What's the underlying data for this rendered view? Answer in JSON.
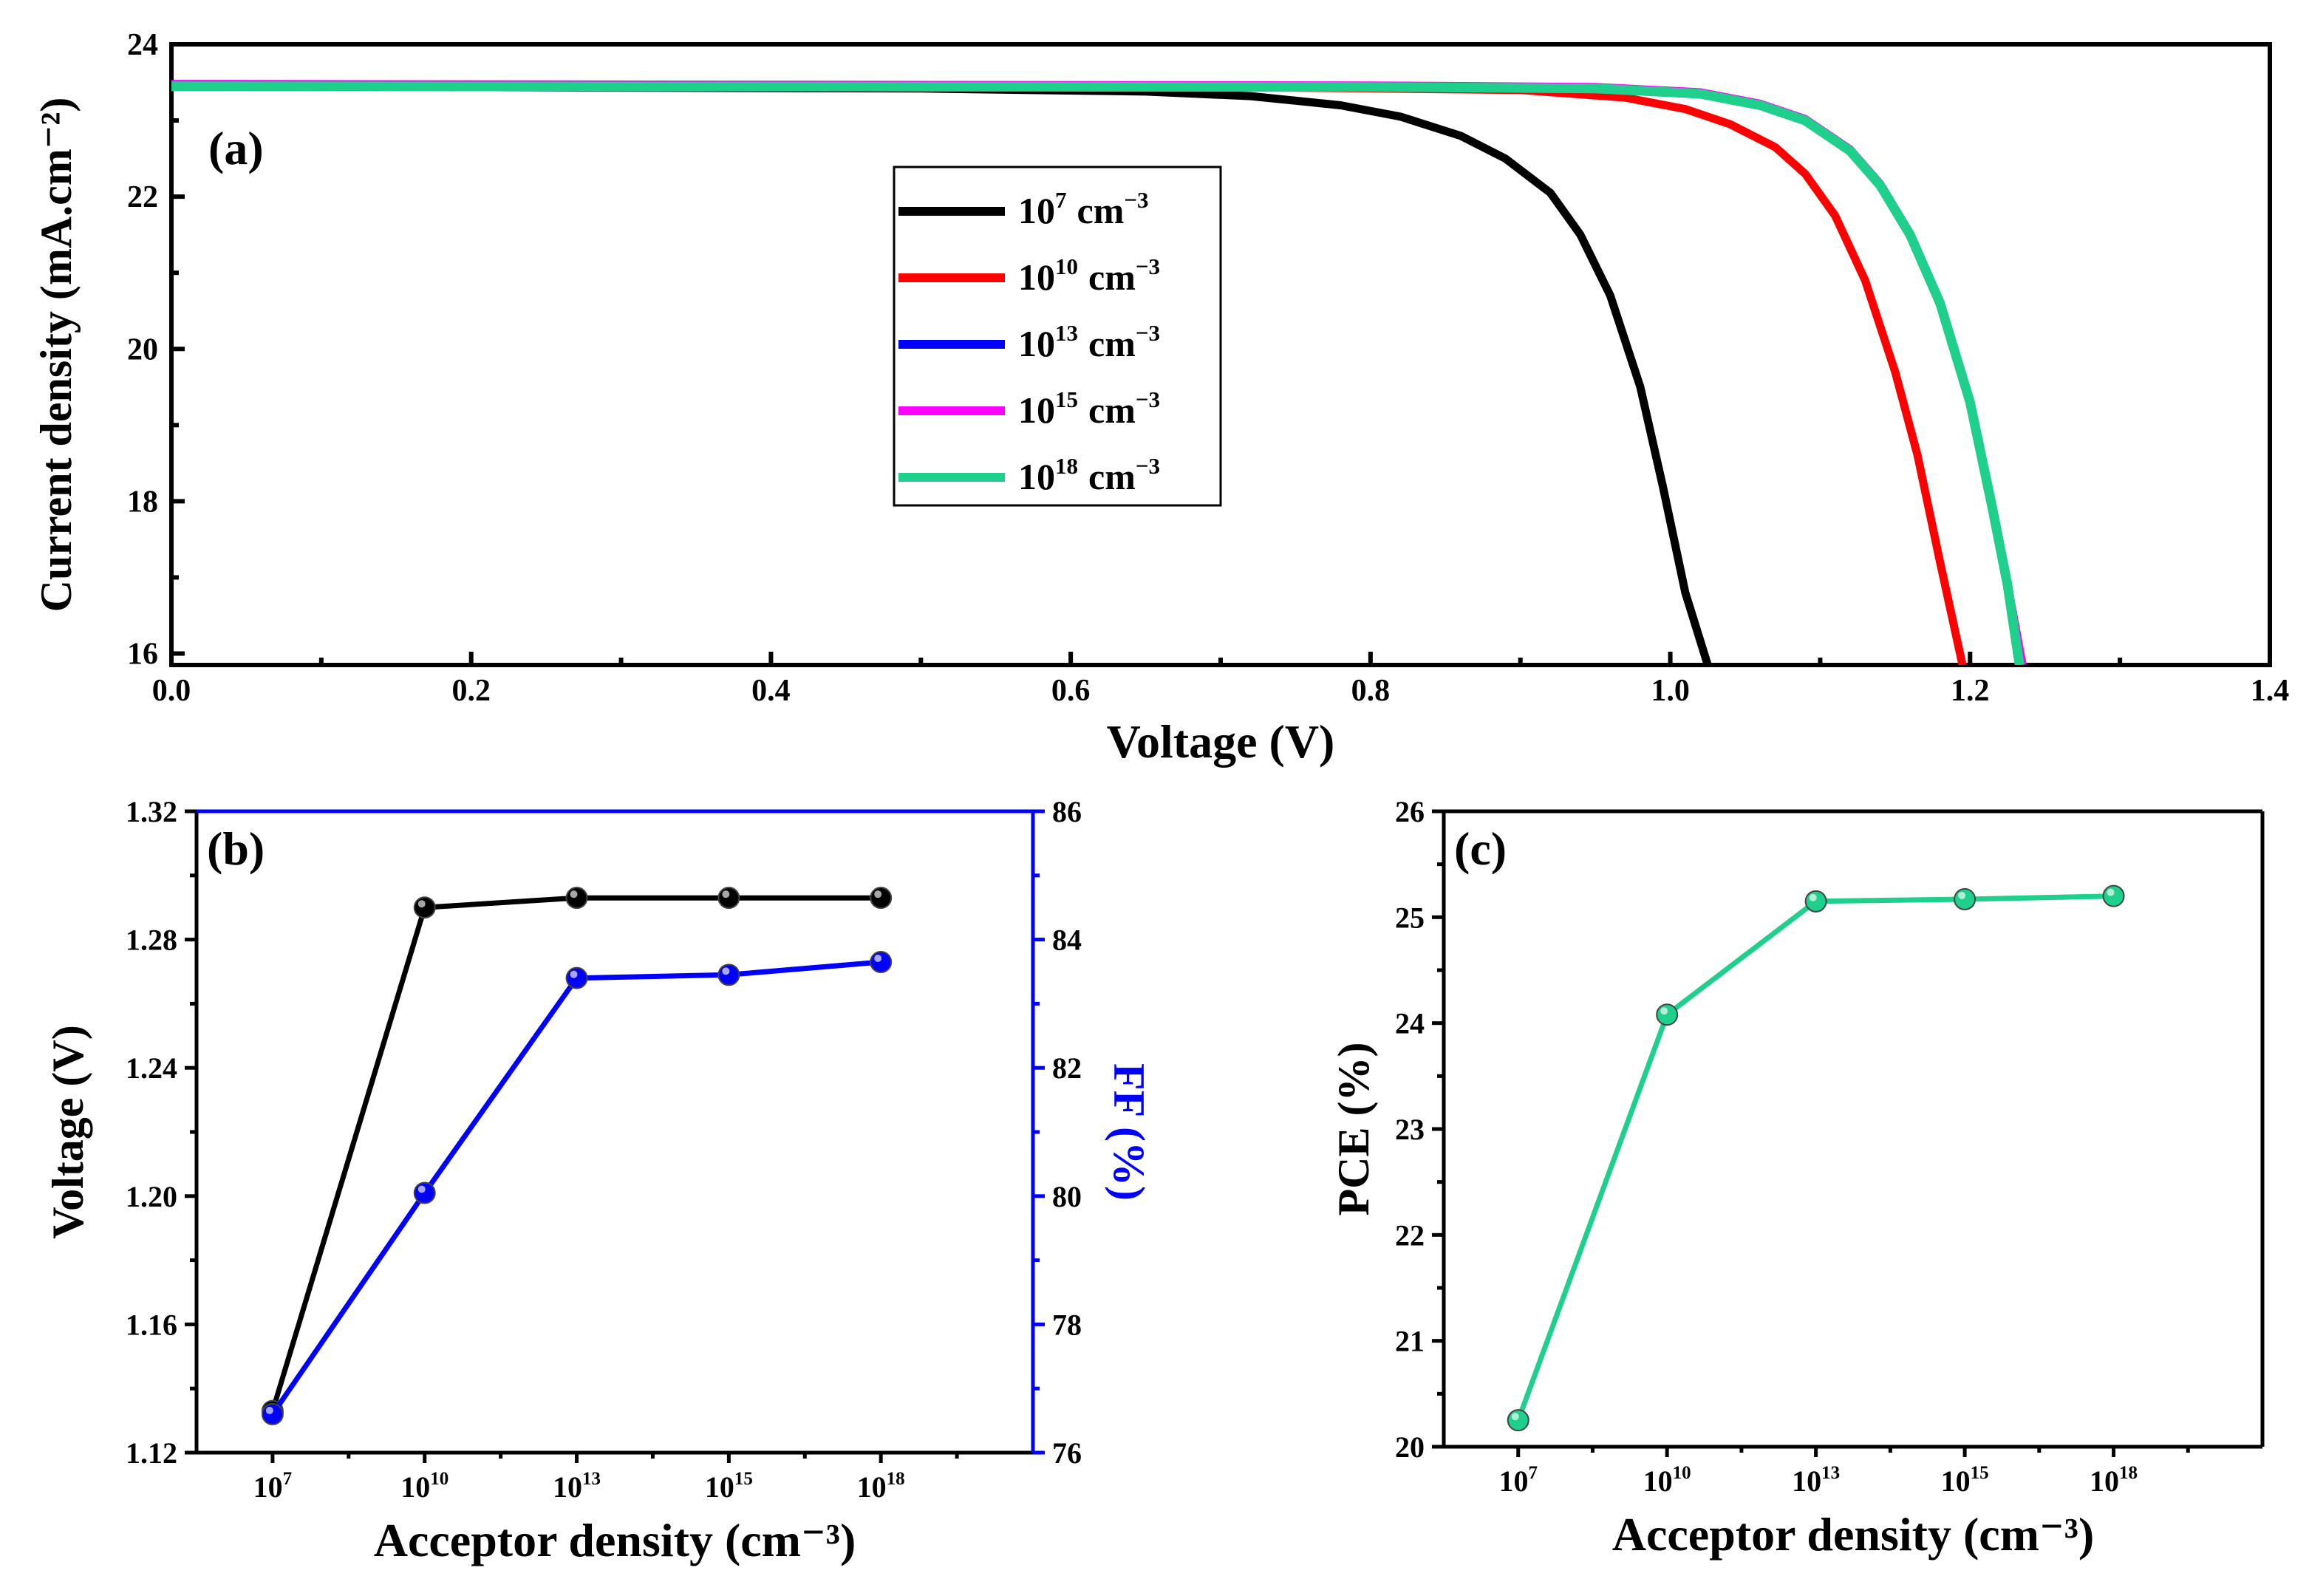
{
  "chart_data": [
    {
      "id": "a",
      "type": "line",
      "panel_label": "(a)",
      "xlabel": "Voltage (V)",
      "ylabel": "Current density (mA.cm⁻²)",
      "xlim": [
        0.0,
        1.4
      ],
      "ylim": [
        15.85,
        24.0
      ],
      "xticks": [
        0.0,
        0.2,
        0.4,
        0.6,
        0.8,
        1.0,
        1.2,
        1.4
      ],
      "xtick_labels": [
        "0.0",
        "0.2",
        "0.4",
        "0.6",
        "0.8",
        "1.0",
        "1.2",
        "1.4"
      ],
      "yticks": [
        16,
        18,
        20,
        22,
        24
      ],
      "ytick_labels": [
        "16",
        "18",
        "20",
        "22",
        "24"
      ],
      "legend_position": "center",
      "series": [
        {
          "name": "10^7 cm^-3",
          "base": "10",
          "exp": "7",
          "unit": "cm",
          "unit_exp": "−3",
          "color": "#000000",
          "x": [
            0.0,
            0.5,
            0.65,
            0.72,
            0.78,
            0.82,
            0.86,
            0.89,
            0.92,
            0.94,
            0.96,
            0.98,
            0.995,
            1.01,
            1.025
          ],
          "y": [
            23.45,
            23.42,
            23.38,
            23.32,
            23.2,
            23.05,
            22.8,
            22.5,
            22.05,
            21.5,
            20.7,
            19.5,
            18.2,
            16.8,
            15.85
          ]
        },
        {
          "name": "10^10 cm^-3",
          "base": "10",
          "exp": "10",
          "unit": "cm",
          "unit_exp": "−3",
          "color": "#ff0000",
          "x": [
            0.0,
            0.7,
            0.9,
            0.97,
            1.01,
            1.04,
            1.07,
            1.09,
            1.11,
            1.13,
            1.15,
            1.165,
            1.18,
            1.195
          ],
          "y": [
            23.45,
            23.44,
            23.4,
            23.3,
            23.15,
            22.95,
            22.65,
            22.3,
            21.75,
            20.9,
            19.7,
            18.6,
            17.2,
            15.85
          ]
        },
        {
          "name": "10^13 cm^-3",
          "base": "10",
          "exp": "13",
          "unit": "cm",
          "unit_exp": "−3",
          "color": "#0000ff",
          "x": [
            0.0,
            0.8,
            0.95,
            1.02,
            1.06,
            1.09,
            1.12,
            1.14,
            1.16,
            1.18,
            1.2,
            1.215,
            1.225,
            1.235
          ],
          "y": [
            23.45,
            23.44,
            23.42,
            23.35,
            23.2,
            23.0,
            22.6,
            22.15,
            21.5,
            20.6,
            19.3,
            17.9,
            16.9,
            15.85
          ]
        },
        {
          "name": "10^15 cm^-3",
          "base": "10",
          "exp": "15",
          "unit": "cm",
          "unit_exp": "−3",
          "color": "#ff00ff",
          "x": [
            0.0,
            0.8,
            0.95,
            1.02,
            1.06,
            1.09,
            1.12,
            1.14,
            1.16,
            1.18,
            1.2,
            1.215,
            1.225,
            1.235
          ],
          "y": [
            23.48,
            23.46,
            23.44,
            23.37,
            23.22,
            23.02,
            22.62,
            22.17,
            21.52,
            20.62,
            19.32,
            17.92,
            16.92,
            15.85
          ]
        },
        {
          "name": "10^18 cm^-3",
          "base": "10",
          "exp": "18",
          "unit": "cm",
          "unit_exp": "−3",
          "color": "#1fcf8c",
          "x": [
            0.0,
            0.8,
            0.95,
            1.02,
            1.06,
            1.09,
            1.12,
            1.14,
            1.16,
            1.18,
            1.2,
            1.215,
            1.225,
            1.233
          ],
          "y": [
            23.45,
            23.44,
            23.42,
            23.35,
            23.2,
            23.0,
            22.6,
            22.15,
            21.5,
            20.6,
            19.3,
            17.9,
            16.9,
            15.85
          ]
        }
      ]
    },
    {
      "id": "b",
      "type": "line",
      "panel_label": "(b)",
      "xlabel": "Acceptor density (cm⁻³)",
      "ylabel": "Voltage (V)",
      "ylabel_right": "FF (%)",
      "categories": [
        {
          "base": "10",
          "exp": "7"
        },
        {
          "base": "10",
          "exp": "10"
        },
        {
          "base": "10",
          "exp": "13"
        },
        {
          "base": "10",
          "exp": "15"
        },
        {
          "base": "10",
          "exp": "18"
        }
      ],
      "xlim": [
        0.5,
        6.0
      ],
      "ylim": [
        1.12,
        1.32
      ],
      "yticks": [
        "1.12",
        "1.16",
        "1.20",
        "1.24",
        "1.28",
        "1.32"
      ],
      "ylim_right": [
        76,
        86
      ],
      "yticks_right": [
        "76",
        "78",
        "80",
        "82",
        "84",
        "86"
      ],
      "right_axis_color": "#0000ff",
      "series": [
        {
          "name": "Voltage",
          "axis": "left",
          "color": "#000000",
          "values": [
            1.133,
            1.29,
            1.293,
            1.293,
            1.293
          ]
        },
        {
          "name": "FF",
          "axis": "right",
          "color": "#0000ff",
          "values": [
            76.6,
            80.05,
            83.4,
            83.45,
            83.65
          ]
        }
      ]
    },
    {
      "id": "c",
      "type": "line",
      "panel_label": "(c)",
      "xlabel": "Acceptor density (cm⁻³)",
      "ylabel": "PCE (%)",
      "categories": [
        {
          "base": "10",
          "exp": "7"
        },
        {
          "base": "10",
          "exp": "10"
        },
        {
          "base": "10",
          "exp": "13"
        },
        {
          "base": "10",
          "exp": "15"
        },
        {
          "base": "10",
          "exp": "18"
        }
      ],
      "xlim": [
        0.5,
        6.0
      ],
      "ylim": [
        20,
        26
      ],
      "yticks": [
        "20",
        "21",
        "22",
        "23",
        "24",
        "25",
        "26"
      ],
      "series": [
        {
          "name": "PCE",
          "color": "#1fcf8c",
          "values": [
            20.25,
            24.08,
            25.15,
            25.17,
            25.2
          ]
        }
      ]
    }
  ]
}
